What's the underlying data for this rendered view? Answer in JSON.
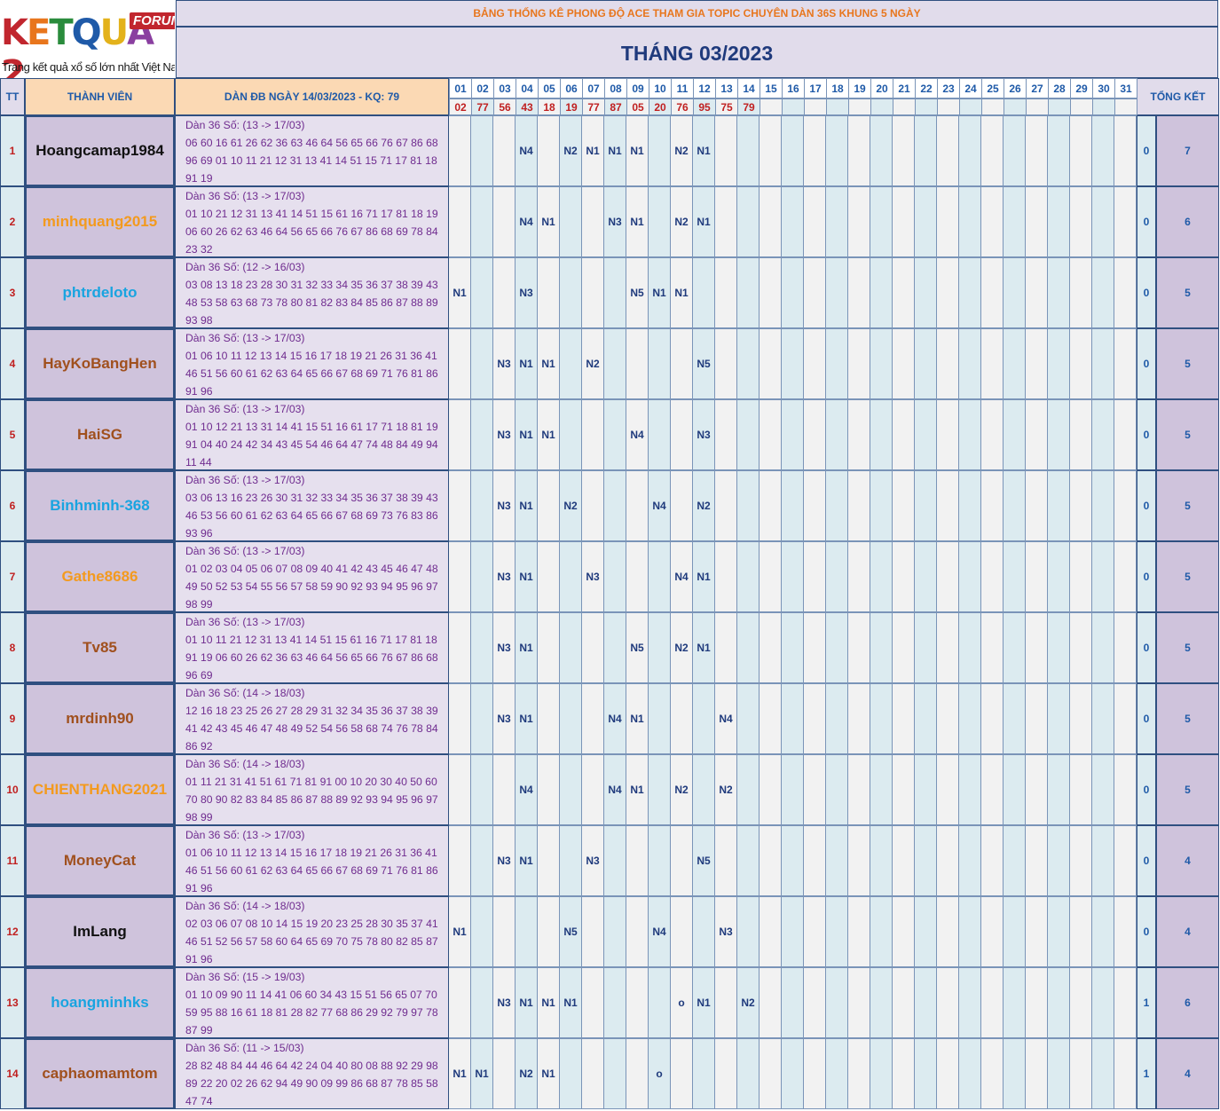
{
  "logo": {
    "letters": [
      {
        "ch": "K",
        "color": "#c1262e"
      },
      {
        "ch": "E",
        "color": "#e8761d"
      },
      {
        "ch": "T",
        "color": "#2a8c3c"
      },
      {
        "ch": "Q",
        "color": "#1f5aa8"
      },
      {
        "ch": "U",
        "color": "#e3b21b"
      },
      {
        "ch": "A",
        "color": "#8a3fa0"
      },
      {
        "ch": "2",
        "color": "#c1262e"
      }
    ],
    "badge": "FORUM",
    "tagline": "Trang kết quả xổ số lớn nhất Việt Nam"
  },
  "banner": "BẢNG THỐNG KÊ PHONG ĐỘ ACE THAM GIA TOPIC CHUYÊN DÀN 36S KHUNG 5 NGÀY",
  "month_title": "THÁNG 03/2023",
  "headers": {
    "tt": "TT",
    "member": "THÀNH VIÊN",
    "dan": "DÀN ĐB NGÀY 14/03/2023 - KQ: 79",
    "total": "TỔNG KẾT"
  },
  "days": [
    "01",
    "02",
    "03",
    "04",
    "05",
    "06",
    "07",
    "08",
    "09",
    "10",
    "11",
    "12",
    "13",
    "14",
    "15",
    "16",
    "17",
    "18",
    "19",
    "20",
    "21",
    "22",
    "23",
    "24",
    "25",
    "26",
    "27",
    "28",
    "29",
    "30",
    "31"
  ],
  "results": [
    "02",
    "77",
    "56",
    "43",
    "18",
    "19",
    "77",
    "87",
    "05",
    "20",
    "76",
    "95",
    "75",
    "79",
    "",
    "",
    "",
    "",
    "",
    "",
    "",
    "",
    "",
    "",
    "",
    "",
    "",
    "",
    "",
    "",
    ""
  ],
  "rows": [
    {
      "tt": "1",
      "name": "Hoangcamap1984",
      "color": "#111111",
      "dan": [
        "Dàn 36 Số: (13 -> 17/03)",
        "06 60 16 61 26 62 36 63 46 64 56 65 66 76 67 86 68",
        "96 69 01 10 11 21 12 31 13 41 14 51 15 71 17 81 18",
        "91 19"
      ],
      "marks": {
        "4": "N4",
        "6": "N2",
        "7": "N1",
        "8": "N1",
        "9": "N1",
        "11": "N2",
        "12": "N1"
      },
      "miss": "0",
      "total": "7"
    },
    {
      "tt": "2",
      "name": "minhquang2015",
      "color": "#f39a1e",
      "dan": [
        "Dàn 36 Số: (13 -> 17/03)",
        "01 10 21 12 31 13 41 14 51 15 61 16 71 17 81 18 19",
        "06 60 26 62 63 46 64 56 65 66 76 67 86 68 69 78 84",
        "23 32"
      ],
      "marks": {
        "4": "N4",
        "5": "N1",
        "8": "N3",
        "9": "N1",
        "11": "N2",
        "12": "N1"
      },
      "miss": "0",
      "total": "6"
    },
    {
      "tt": "3",
      "name": "phtrdeloto",
      "color": "#19a4e0",
      "dan": [
        "Dàn 36 Số: (12 -> 16/03)",
        "03 08 13 18 23 28 30 31 32 33 34 35 36 37 38 39 43",
        "48 53 58 63 68 73 78 80 81 82 83 84 85 86 87 88 89",
        "93 98"
      ],
      "marks": {
        "1": "N1",
        "4": "N3",
        "9": "N5",
        "10": "N1",
        "11": "N1"
      },
      "miss": "0",
      "total": "5"
    },
    {
      "tt": "4",
      "name": "HayKoBangHen",
      "color": "#a0501e",
      "dan": [
        "Dàn 36 Số: (13 -> 17/03)",
        "01 06 10 11 12 13 14 15 16 17 18 19 21 26 31 36 41",
        "46 51 56 60 61 62 63 64 65 66 67 68 69 71 76 81 86",
        "91 96"
      ],
      "marks": {
        "3": "N3",
        "4": "N1",
        "5": "N1",
        "7": "N2",
        "12": "N5"
      },
      "miss": "0",
      "total": "5"
    },
    {
      "tt": "5",
      "name": "HaiSG",
      "color": "#a0501e",
      "dan": [
        "Dàn 36 Số: (13 -> 17/03)",
        "01 10 12 21 13 31 14 41 15 51 16 61 17 71 18 81 19",
        "91 04 40 24 42 34 43 45 54 46 64 47 74 48 84 49 94",
        "11 44"
      ],
      "marks": {
        "3": "N3",
        "4": "N1",
        "5": "N1",
        "9": "N4",
        "12": "N3"
      },
      "miss": "0",
      "total": "5"
    },
    {
      "tt": "6",
      "name": "Binhminh-368",
      "color": "#19a4e0",
      "dan": [
        "Dàn 36 Số: (13 -> 17/03)",
        "03 06 13 16 23 26 30 31 32 33 34 35 36 37 38 39 43",
        "46 53 56 60 61 62 63 64 65 66 67 68 69 73 76 83 86",
        "93 96"
      ],
      "marks": {
        "3": "N3",
        "4": "N1",
        "6": "N2",
        "10": "N4",
        "12": "N2"
      },
      "miss": "0",
      "total": "5"
    },
    {
      "tt": "7",
      "name": "Gathe8686",
      "color": "#f39a1e",
      "dan": [
        "Dàn 36 Số: (13 -> 17/03)",
        "01 02 03 04 05 06 07 08 09 40 41 42 43 45 46 47 48",
        "49 50 52 53 54 55 56 57 58 59 90 92 93 94 95 96 97",
        "98 99"
      ],
      "marks": {
        "3": "N3",
        "4": "N1",
        "7": "N3",
        "11": "N4",
        "12": "N1"
      },
      "miss": "0",
      "total": "5"
    },
    {
      "tt": "8",
      "name": "Tv85",
      "color": "#a0501e",
      "dan": [
        "Dàn 36 Số: (13 -> 17/03)",
        "01 10 11 21 12 31 13 41 14 51 15 61 16 71 17 81 18",
        "91 19 06 60 26 62 36 63 46 64 56 65 66 76 67 86 68",
        "96 69"
      ],
      "marks": {
        "3": "N3",
        "4": "N1",
        "9": "N5",
        "11": "N2",
        "12": "N1"
      },
      "miss": "0",
      "total": "5"
    },
    {
      "tt": "9",
      "name": "mrdinh90",
      "color": "#a0501e",
      "dan": [
        "Dàn 36 Số: (14 -> 18/03)",
        "12 16 18 23 25 26 27 28 29 31 32 34 35 36 37 38 39",
        "41 42 43 45 46 47 48 49 52 54 56 58 68 74 76 78 84",
        "86 92"
      ],
      "marks": {
        "3": "N3",
        "4": "N1",
        "8": "N4",
        "9": "N1",
        "13": "N4"
      },
      "miss": "0",
      "total": "5"
    },
    {
      "tt": "10",
      "name": "CHIENTHANG2021",
      "color": "#f39a1e",
      "dan": [
        "Dàn 36 Số: (14 -> 18/03)",
        "01 11 21 31 41 51 61 71 81 91 00 10 20 30 40 50 60",
        "70 80 90 82 83 84 85 86 87 88 89 92 93 94 95 96 97",
        "98 99"
      ],
      "marks": {
        "4": "N4",
        "8": "N4",
        "9": "N1",
        "11": "N2",
        "13": "N2"
      },
      "miss": "0",
      "total": "5"
    },
    {
      "tt": "11",
      "name": "MoneyCat",
      "color": "#a0501e",
      "dan": [
        "Dàn 36 Số: (13 -> 17/03)",
        "01 06 10 11 12 13 14 15 16 17 18 19 21 26 31 36 41",
        "46 51 56 60 61 62 63 64 65 66 67 68 69 71 76 81 86",
        "91 96"
      ],
      "marks": {
        "3": "N3",
        "4": "N1",
        "7": "N3",
        "12": "N5"
      },
      "miss": "0",
      "total": "4"
    },
    {
      "tt": "12",
      "name": "ImLang",
      "color": "#111111",
      "dan": [
        "Dàn 36 Số: (14 -> 18/03)",
        "02 03 06 07 08 10 14 15 19 20 23 25 28 30 35 37 41",
        "46 51 52 56 57 58 60 64 65 69 70 75 78 80 82 85 87",
        "91 96"
      ],
      "marks": {
        "1": "N1",
        "6": "N5",
        "10": "N4",
        "13": "N3"
      },
      "miss": "0",
      "total": "4"
    },
    {
      "tt": "13",
      "name": "hoangminhks",
      "color": "#19a4e0",
      "dan": [
        "Dàn 36 Số: (15 -> 19/03)",
        "01 10 09 90 11 14 41 06 60 34 43 15 51 56 65 07 70",
        "59 95 88 16 61 18 81 28 82 77 68 86 29 92 79 97 78",
        "87 99"
      ],
      "marks": {
        "3": "N3",
        "4": "N1",
        "5": "N1",
        "6": "N1",
        "11": "o",
        "12": "N1",
        "14": "N2"
      },
      "miss": "1",
      "total": "6"
    },
    {
      "tt": "14",
      "name": "caphaomamtom",
      "color": "#a0501e",
      "dan": [
        "Dàn 36 Số: (11 -> 15/03)",
        "28 82 48 84 44 46 64 42 24 04 40 80 08 88 92 29 98",
        "89 22 20 02 26 62 94 49 90 09 99 86 68 87 78 85 58",
        "47 74"
      ],
      "marks": {
        "1": "N1",
        "2": "N1",
        "4": "N2",
        "5": "N1",
        "10": "o"
      },
      "miss": "1",
      "total": "4"
    }
  ]
}
